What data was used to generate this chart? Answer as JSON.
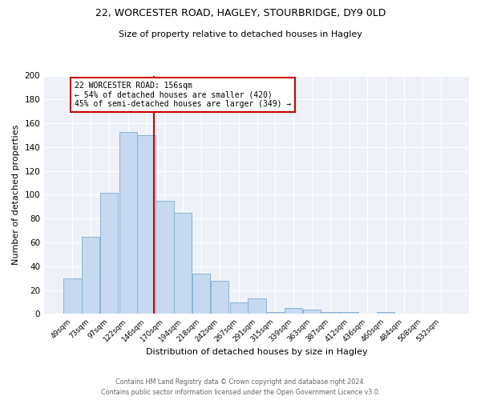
{
  "title1": "22, WORCESTER ROAD, HAGLEY, STOURBRIDGE, DY9 0LD",
  "title2": "Size of property relative to detached houses in Hagley",
  "xlabel": "Distribution of detached houses by size in Hagley",
  "ylabel": "Number of detached properties",
  "bar_categories": [
    "49sqm",
    "73sqm",
    "97sqm",
    "122sqm",
    "146sqm",
    "170sqm",
    "194sqm",
    "218sqm",
    "242sqm",
    "267sqm",
    "291sqm",
    "315sqm",
    "339sqm",
    "363sqm",
    "387sqm",
    "412sqm",
    "436sqm",
    "460sqm",
    "484sqm",
    "508sqm",
    "532sqm"
  ],
  "bar_values": [
    30,
    65,
    102,
    153,
    150,
    95,
    85,
    34,
    28,
    10,
    13,
    2,
    5,
    4,
    2,
    2,
    0,
    2,
    0,
    0,
    0
  ],
  "bar_color": "#c6d9f0",
  "bar_edge_color": "#8ab4d4",
  "property_line_label": "22 WORCESTER ROAD: 156sqm",
  "annotation_line1": "← 54% of detached houses are smaller (420)",
  "annotation_line2": "45% of semi-detached houses are larger (349) →",
  "annotation_box_color": "#ffffff",
  "annotation_box_edge": "#cc0000",
  "vline_color": "#cc0000",
  "footer1": "Contains HM Land Registry data © Crown copyright and database right 2024.",
  "footer2": "Contains public sector information licensed under the Open Government Licence v3.0.",
  "ylim": [
    0,
    200
  ],
  "yticks": [
    0,
    20,
    40,
    60,
    80,
    100,
    120,
    140,
    160,
    180,
    200
  ],
  "background_color": "#eef2f8"
}
